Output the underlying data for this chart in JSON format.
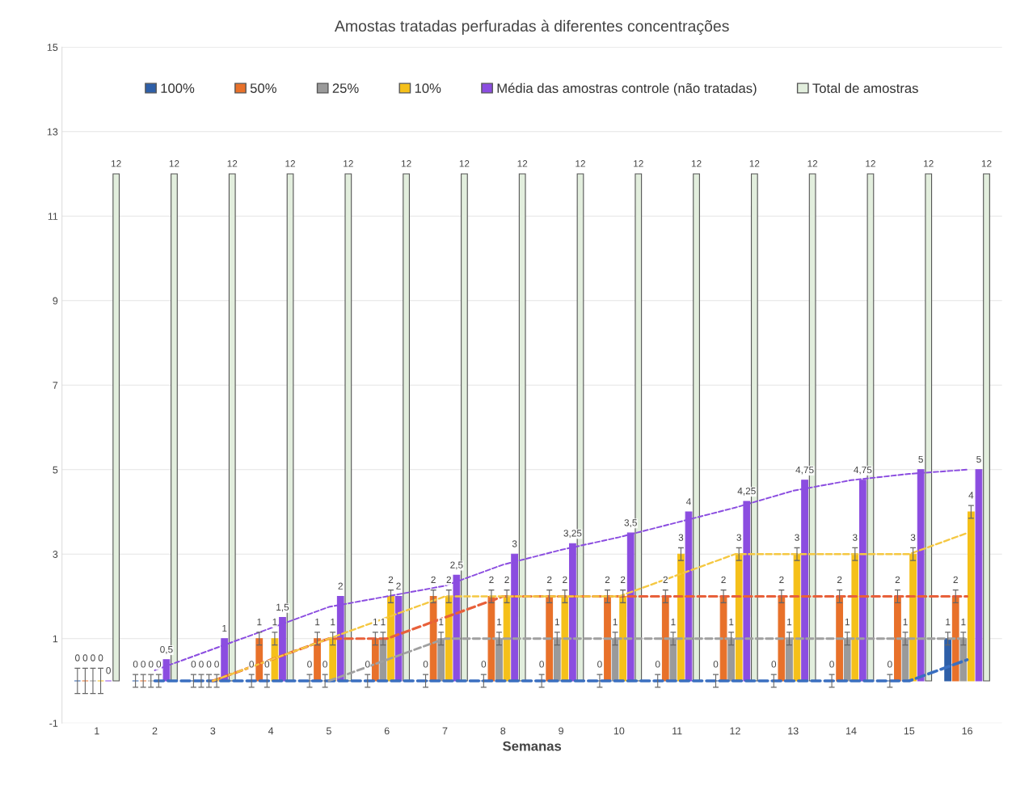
{
  "chart_data": {
    "type": "bar",
    "title": "Amostas tratadas perfuradas à diferentes concentrações",
    "xlabel": "Semanas",
    "categories": [
      "1",
      "2",
      "3",
      "4",
      "5",
      "6",
      "7",
      "8",
      "9",
      "10",
      "11",
      "12",
      "13",
      "14",
      "15",
      "16"
    ],
    "ylim": [
      -1,
      15
    ],
    "yticks": [
      -1,
      1,
      3,
      5,
      7,
      9,
      11,
      13,
      15
    ],
    "grid": "y",
    "legend": "top",
    "series": [
      {
        "name": "100%",
        "color": "#2e5fa8",
        "values": [
          0,
          0,
          0,
          0,
          0,
          0,
          0,
          0,
          0,
          0,
          0,
          0,
          0,
          0,
          0,
          1
        ],
        "errors": [
          0.3,
          0.15,
          0.15,
          0.15,
          0.15,
          0.15,
          0.15,
          0.15,
          0.15,
          0.15,
          0.15,
          0.15,
          0.15,
          0.15,
          0.15,
          0.15
        ],
        "value_labels": [
          "0",
          "0",
          "0",
          "0",
          "0",
          "0",
          "0",
          "0",
          "0",
          "0",
          "0",
          "0",
          "0",
          "0",
          "0",
          "1"
        ]
      },
      {
        "name": "50%",
        "color": "#e8712a",
        "values": [
          0,
          0,
          0,
          1,
          1,
          1,
          2,
          2,
          2,
          2,
          2,
          2,
          2,
          2,
          2,
          2
        ],
        "errors": [
          0.3,
          0.15,
          0.15,
          0.15,
          0.15,
          0.15,
          0.15,
          0.15,
          0.15,
          0.15,
          0.15,
          0.15,
          0.15,
          0.15,
          0.15,
          0.15
        ],
        "value_labels": [
          "0",
          "0",
          "0",
          "1",
          "1",
          "1",
          "2",
          "2",
          "2",
          "2",
          "2",
          "2",
          "2",
          "2",
          "2",
          "2"
        ]
      },
      {
        "name": "25%",
        "color": "#9a9a9a",
        "values": [
          0,
          0,
          0,
          0,
          0,
          1,
          1,
          1,
          1,
          1,
          1,
          1,
          1,
          1,
          1,
          1
        ],
        "errors": [
          0.3,
          0.15,
          0.15,
          0.15,
          0.15,
          0.15,
          0.15,
          0.15,
          0.15,
          0.15,
          0.15,
          0.15,
          0.15,
          0.15,
          0.15,
          0.15
        ],
        "value_labels": [
          "0",
          "0",
          "0",
          "0",
          "0",
          "1",
          "1",
          "1",
          "1",
          "1",
          "1",
          "1",
          "1",
          "1",
          "1",
          "1"
        ]
      },
      {
        "name": "10%",
        "color": "#f5c01a",
        "values": [
          0,
          0,
          0,
          1,
          1,
          2,
          2,
          2,
          2,
          2,
          3,
          3,
          3,
          3,
          3,
          4
        ],
        "errors": [
          0.3,
          0.15,
          0.15,
          0.15,
          0.15,
          0.15,
          0.15,
          0.15,
          0.15,
          0.15,
          0.15,
          0.15,
          0.15,
          0.15,
          0.15,
          0.15
        ],
        "value_labels": [
          "0",
          "0",
          "0",
          "1",
          "1",
          "2",
          "2",
          "2",
          "2",
          "2",
          "3",
          "3",
          "3",
          "3",
          "3",
          "4"
        ]
      },
      {
        "name": "Média das amostras controle (não tratadas)",
        "color": "#8b4de0",
        "values": [
          0,
          0.5,
          1,
          1.5,
          2,
          2,
          2.5,
          3,
          3.25,
          3.5,
          4,
          4.25,
          4.75,
          4.75,
          5,
          5
        ],
        "value_labels": [
          "0",
          "0,5",
          "1",
          "1,5",
          "2",
          "2",
          "2,5",
          "3",
          "3,25",
          "3,5",
          "4",
          "4,25",
          "4,75",
          "4,75",
          "5",
          "5"
        ]
      },
      {
        "name": "Total de amostras",
        "color": "#e2eedd",
        "values": [
          12,
          12,
          12,
          12,
          12,
          12,
          12,
          12,
          12,
          12,
          12,
          12,
          12,
          12,
          12,
          12
        ],
        "value_labels": [
          "12",
          "12",
          "12",
          "12",
          "12",
          "12",
          "12",
          "12",
          "12",
          "12",
          "12",
          "12",
          "12",
          "12",
          "12",
          "12"
        ]
      },
      {
        "type": "line",
        "line_style": "dashed",
        "color": "#3a6fc0",
        "x": [
          "2",
          "3",
          "4",
          "5",
          "6",
          "7",
          "8",
          "9",
          "10",
          "11",
          "12",
          "13",
          "14",
          "15",
          "16"
        ],
        "values": [
          0,
          0,
          0,
          0,
          0,
          0,
          0,
          0,
          0,
          0,
          0,
          0,
          0,
          0,
          0.5
        ]
      },
      {
        "type": "line",
        "line_style": "dashed",
        "color": "#e8603a",
        "x": [
          "2",
          "3",
          "4",
          "5",
          "6",
          "7",
          "8",
          "9",
          "10",
          "11",
          "12",
          "13",
          "14",
          "15",
          "16"
        ],
        "values": [
          null,
          0,
          0.5,
          1,
          1,
          1.5,
          2,
          2,
          2,
          2,
          2,
          2,
          2,
          2,
          2
        ]
      },
      {
        "type": "line",
        "line_style": "dashed",
        "color": "#a0a0a0",
        "x": [
          "2",
          "3",
          "4",
          "5",
          "6",
          "7",
          "8",
          "9",
          "10",
          "11",
          "12",
          "13",
          "14",
          "15",
          "16"
        ],
        "values": [
          null,
          null,
          null,
          0,
          0.5,
          1,
          1,
          1,
          1,
          1,
          1,
          1,
          1,
          1,
          1
        ]
      },
      {
        "type": "line",
        "line_style": "dashed",
        "color": "#f5c842",
        "x": [
          "2",
          "3",
          "4",
          "5",
          "6",
          "7",
          "8",
          "9",
          "10",
          "11",
          "12",
          "13",
          "14",
          "15",
          "16"
        ],
        "values": [
          null,
          0,
          0.5,
          1,
          1.5,
          2,
          2,
          2,
          2,
          2.5,
          3,
          3,
          3,
          3,
          3.5
        ]
      },
      {
        "type": "line",
        "line_style": "dashed",
        "color": "#8b4de0",
        "x": [
          "2",
          "3",
          "4",
          "5",
          "6",
          "7",
          "8",
          "9",
          "10",
          "11",
          "12",
          "13",
          "14",
          "15",
          "16"
        ],
        "values": [
          0.25,
          0.75,
          1.25,
          1.75,
          2,
          2.25,
          2.75,
          3.1,
          3.4,
          3.75,
          4.1,
          4.5,
          4.75,
          4.9,
          5
        ]
      }
    ]
  }
}
